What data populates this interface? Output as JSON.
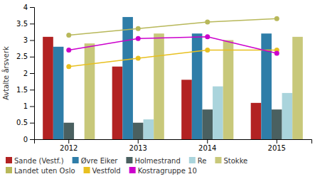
{
  "chart_data": {
    "type": "bar",
    "categories": [
      "2012",
      "2013",
      "2014",
      "2015"
    ],
    "ylabel": "Avtalte årsverk",
    "ylim": [
      0,
      4.0
    ],
    "yticks": [
      0,
      0.5,
      1.0,
      1.5,
      2.0,
      2.5,
      3.0,
      3.5,
      4.0
    ],
    "grid": false,
    "legend": "bottom",
    "series": [
      {
        "name": "Sande (Vestf.)",
        "type": "bar",
        "color": "#b22222",
        "values": [
          3.1,
          2.2,
          1.8,
          1.1
        ]
      },
      {
        "name": "Øvre Eiker",
        "type": "bar",
        "color": "#2e7da8",
        "values": [
          2.8,
          3.7,
          3.2,
          3.2
        ]
      },
      {
        "name": "Holmestrand",
        "type": "bar",
        "color": "#4a6060",
        "values": [
          0.5,
          0.5,
          0.9,
          0.9
        ]
      },
      {
        "name": "Re",
        "type": "bar",
        "color": "#aad4dc",
        "values": [
          0.0,
          0.6,
          1.6,
          1.4
        ]
      },
      {
        "name": "Stokke",
        "type": "bar",
        "color": "#c8c87a",
        "values": [
          2.9,
          3.2,
          3.0,
          3.1
        ]
      },
      {
        "name": "Landet uten Oslo",
        "type": "line",
        "marker": "circle",
        "color": "#b8b85a",
        "values": [
          3.15,
          3.35,
          3.55,
          3.65
        ]
      },
      {
        "name": "Vestfold",
        "type": "line",
        "marker": "circle",
        "color": "#e8c020",
        "values": [
          2.2,
          2.45,
          2.7,
          2.7
        ]
      },
      {
        "name": "Kostragruppe 10",
        "type": "line",
        "marker": "circle",
        "color": "#cc00cc",
        "values": [
          2.7,
          3.05,
          3.1,
          2.6
        ]
      }
    ]
  }
}
